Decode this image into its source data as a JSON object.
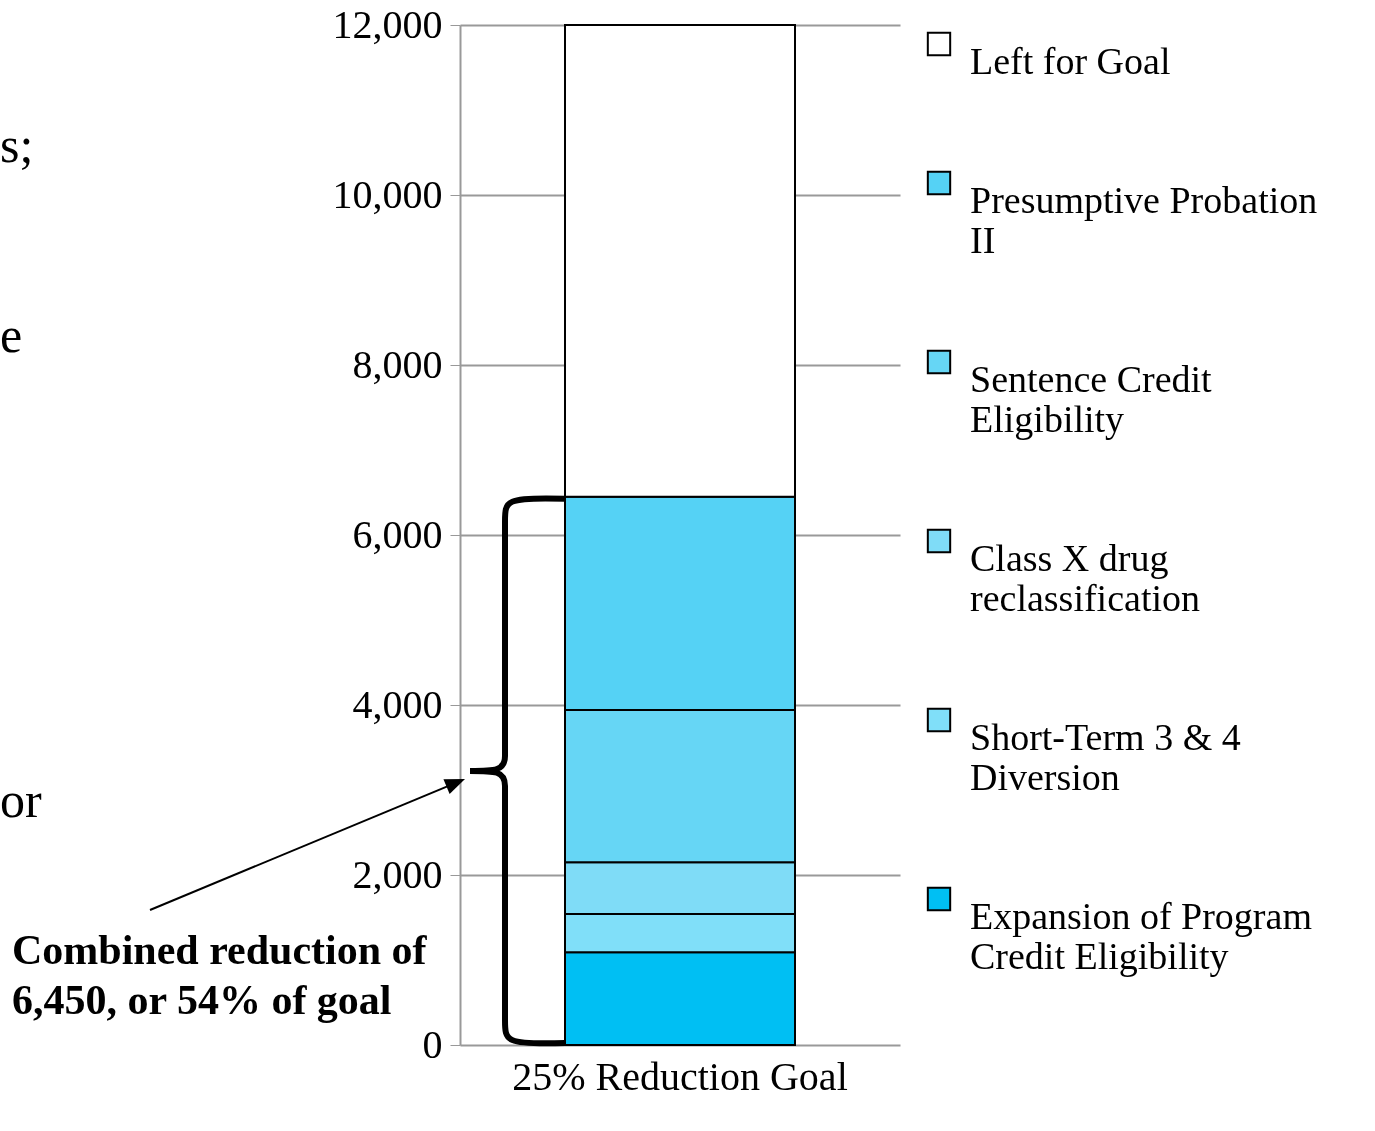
{
  "chart_data": {
    "type": "bar",
    "stacked": true,
    "categories": [
      "25% Reduction Goal"
    ],
    "series": [
      {
        "name": "Expansion of Program Credit Eligibility",
        "color": "#00bff3",
        "values": [
          1090
        ]
      },
      {
        "name": "Short-Term 3 & 4 Diversion",
        "color": "#80dff9",
        "values": [
          450
        ]
      },
      {
        "name": "Class X drug reclassification",
        "color": "#7fdcf7",
        "values": [
          610
        ]
      },
      {
        "name": "Sentence Credit Eligibility",
        "color": "#66d6f5",
        "values": [
          1790
        ]
      },
      {
        "name": "Presumptive Probation II",
        "color": "#55d2f5",
        "values": [
          2510
        ]
      },
      {
        "name": "Left for Goal",
        "color": "#ffffff",
        "values": [
          5550
        ]
      }
    ],
    "ylim": [
      0,
      12000
    ],
    "yticks": [
      {
        "value": 0,
        "label": "0"
      },
      {
        "value": 2000,
        "label": "2,000"
      },
      {
        "value": 4000,
        "label": "4,000"
      },
      {
        "value": 6000,
        "label": "6,000"
      },
      {
        "value": 8000,
        "label": "8,000"
      },
      {
        "value": 10000,
        "label": "10,000"
      },
      {
        "value": 12000,
        "label": "12,000"
      }
    ],
    "grid": "y",
    "legend": "right",
    "annotations": [
      "s;",
      "e",
      "or",
      "Combined reduction of 6,450, or 54% of goal"
    ]
  }
}
